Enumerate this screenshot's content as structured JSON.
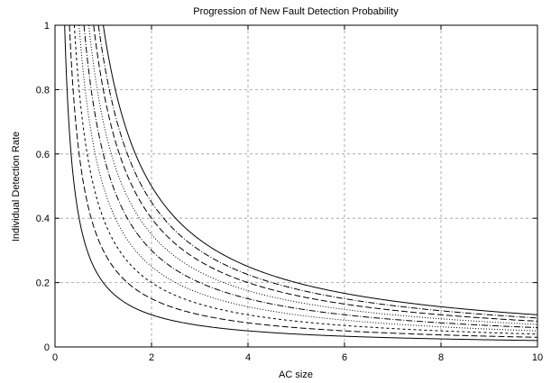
{
  "chart_data": {
    "type": "line",
    "title": "Progression of New Fault Detection Probability",
    "xlabel": "AC size",
    "ylabel": "Individual Detection Rate",
    "xlim": [
      0,
      10
    ],
    "ylim": [
      0,
      1
    ],
    "xticks": [
      0,
      2,
      4,
      6,
      8,
      10
    ],
    "yticks": [
      0,
      0.2,
      0.4,
      0.6,
      0.8,
      1
    ],
    "xtick_labels": [
      "0",
      "2",
      "4",
      "6",
      "8",
      "10"
    ],
    "ytick_labels": [
      "0",
      "0.2",
      "0.4",
      "0.6",
      "0.8",
      "1"
    ],
    "grid": true,
    "legend": "none",
    "function": "y = k / x, clipped at y = 1",
    "series": [
      {
        "k": 0.2,
        "line_style": "solid"
      },
      {
        "k": 0.3,
        "line_style": "dashed"
      },
      {
        "k": 0.4,
        "line_style": "short-dashed"
      },
      {
        "k": 0.5,
        "line_style": "dotted"
      },
      {
        "k": 0.6,
        "line_style": "dash-dot"
      },
      {
        "k": 0.7,
        "line_style": "dotted"
      },
      {
        "k": 0.8,
        "line_style": "dashed"
      },
      {
        "k": 0.9,
        "line_style": "dash-dot"
      },
      {
        "k": 1.0,
        "line_style": "solid"
      }
    ],
    "sample_x": [
      0.2,
      0.5,
      1,
      2,
      4,
      6,
      8,
      10
    ]
  }
}
